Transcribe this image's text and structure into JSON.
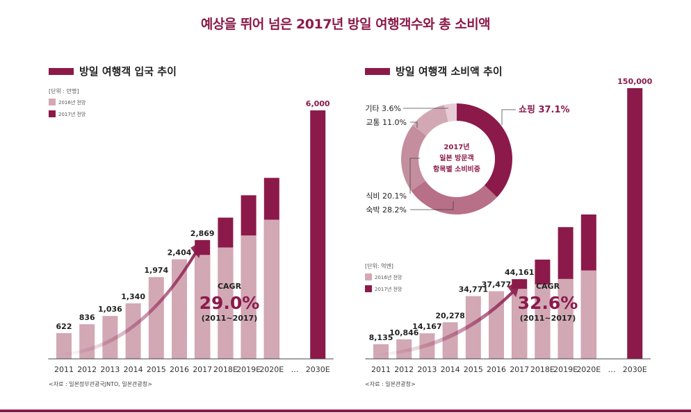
{
  "title": "예상을 뛰어 넘은 2017년 방일 여행객수와 총 소비액",
  "colors": {
    "primary": "#8b1a4a",
    "light": "#d2a8b5",
    "text": "#222222",
    "axis": "#333333"
  },
  "chart_data": [
    {
      "type": "bar",
      "title": "방일 여행객 입국 추이",
      "unit": "[단위 : 만명]",
      "legend": [
        "2016년 전망",
        "2017년 전망"
      ],
      "categories": [
        "2011",
        "2012",
        "2013",
        "2014",
        "2015",
        "2016",
        "2017",
        "2018E",
        "2019E",
        "2020E",
        "…",
        "2030E"
      ],
      "series": [
        {
          "name": "2016년 전망",
          "values": [
            622,
            836,
            1036,
            1340,
            1974,
            2404,
            2510,
            2690,
            2980,
            3360,
            null,
            null
          ]
        },
        {
          "name": "2017년 전망",
          "values": [
            null,
            null,
            null,
            null,
            null,
            null,
            2869,
            3410,
            3950,
            4370,
            null,
            6000
          ]
        }
      ],
      "data_labels": [
        "622",
        "836",
        "1,036",
        "1,340",
        "1,974",
        "2,404",
        "2,869",
        "",
        "",
        "",
        "",
        "6,000"
      ],
      "ylim": [
        0,
        6000
      ],
      "cagr": {
        "label": "CAGR",
        "value": "29.0%",
        "period": "(2011~2017)"
      },
      "source": "<자료 : 일본정부관광국JNTO, 일본관광청>"
    },
    {
      "type": "bar",
      "title": "방일 여행객 소비액 추이",
      "unit": "[단위: 억엔]",
      "legend": [
        "2016년 전망",
        "2017년 전망"
      ],
      "categories": [
        "2011",
        "2012",
        "2013",
        "2014",
        "2015",
        "2016",
        "2017",
        "2018E",
        "2019E",
        "2020E",
        "…",
        "2030E"
      ],
      "series": [
        {
          "name": "2016년 전망",
          "values": [
            8135,
            10846,
            14167,
            20278,
            34771,
            37477,
            38800,
            41300,
            44300,
            49000,
            null,
            null
          ]
        },
        {
          "name": "2017년 전망",
          "values": [
            null,
            null,
            null,
            null,
            null,
            null,
            44161,
            55000,
            73000,
            80000,
            null,
            150000
          ]
        }
      ],
      "data_labels": [
        "8,135",
        "10,846",
        "14,167",
        "20,278",
        "34,771",
        "37,477",
        "44,161",
        "",
        "",
        "",
        "",
        "150,000"
      ],
      "ylim": [
        0,
        150000
      ],
      "cagr": {
        "label": "CAGR",
        "value": "32.6%",
        "period": "(2011~2017)"
      },
      "source": "<자료 : 일본관광청>"
    },
    {
      "type": "pie",
      "center_label": [
        "2017년",
        "일본 방문객",
        "항목별 소비비중"
      ],
      "slices": [
        {
          "label": "쇼핑",
          "value": 37.1,
          "text": "쇼핑 37.1%",
          "color": "#8b1a4a"
        },
        {
          "label": "숙박",
          "value": 28.2,
          "text": "숙박 28.2%",
          "color": "#b86f88"
        },
        {
          "label": "식비",
          "value": 20.1,
          "text": "식비 20.1%",
          "color": "#c48e9f"
        },
        {
          "label": "교통",
          "value": 11.0,
          "text": "교통 11.0%",
          "color": "#d2a8b5"
        },
        {
          "label": "기타",
          "value": 3.6,
          "text": "기타 3.6%",
          "color": "#e8ccd5"
        }
      ]
    }
  ]
}
